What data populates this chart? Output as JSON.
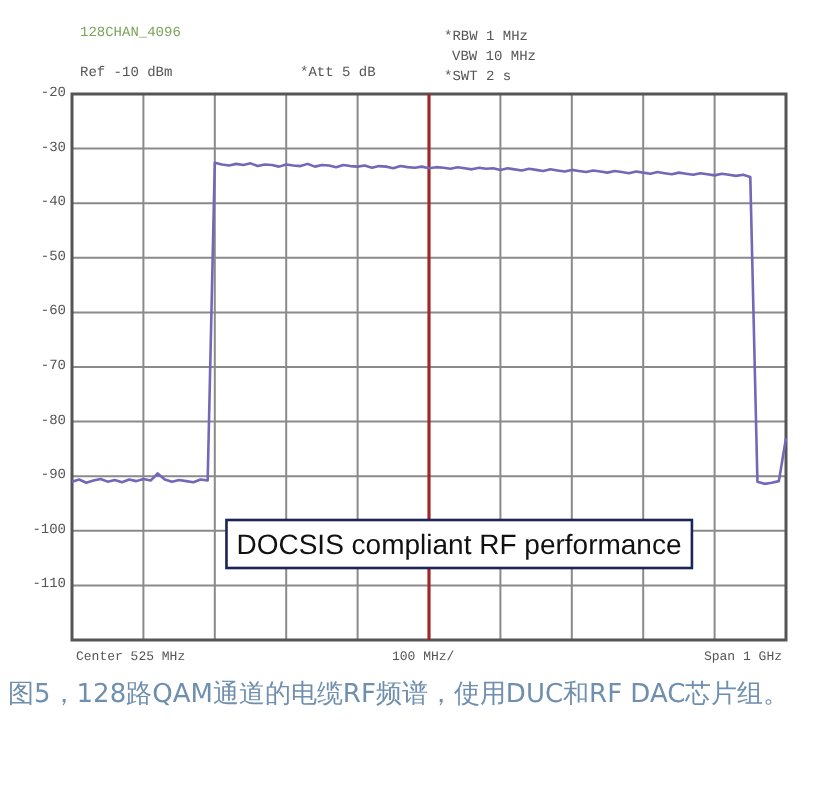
{
  "chart_data": {
    "type": "line",
    "title": "128CHAN_4096",
    "ylim": [
      -120,
      -20
    ],
    "yticks": [
      -20,
      -30,
      -40,
      -50,
      -60,
      -70,
      -80,
      -90,
      -100,
      -110,
      {
        "value": -120,
        "label": null
      }
    ],
    "grid": true,
    "marker": "none",
    "line_style": "solid",
    "categories": [
      null,
      null,
      null,
      null,
      null,
      null,
      null,
      null,
      null,
      null,
      null,
      null,
      null,
      null,
      null,
      null,
      null,
      null,
      null,
      null,
      null,
      null,
      null,
      null,
      null,
      null,
      null,
      null,
      null,
      null,
      null,
      null,
      null,
      null,
      null,
      null,
      null,
      null,
      null,
      null,
      null,
      null,
      null,
      null,
      null,
      null,
      null,
      null,
      null,
      null,
      null,
      null,
      null,
      null,
      null,
      null,
      null,
      null,
      null,
      null,
      null,
      null,
      null,
      null,
      null,
      null,
      null,
      null,
      null,
      null,
      null,
      null,
      null,
      null,
      null,
      null,
      null,
      null,
      null,
      null,
      null,
      null,
      null,
      null,
      null,
      null,
      null,
      null,
      null,
      null,
      null,
      null,
      null,
      null,
      null,
      null,
      null,
      null,
      null,
      null,
      null
    ],
    "series": [
      {
        "color": "#7467b8",
        "values": [
          -91,
          -90.6,
          -91.2,
          -90.8,
          -90.5,
          -91,
          -90.7,
          -91.1,
          -90.6,
          -90.9,
          -90.5,
          -90.8,
          -89.5,
          -90.6,
          -91,
          -90.7,
          -90.9,
          -91.1,
          -90.6,
          -90.8,
          -32.6,
          -32.9,
          -33.1,
          -32.8,
          -33,
          -32.7,
          -33.2,
          -32.9,
          -33,
          -33.3,
          -32.9,
          -33.1,
          -33.2,
          -32.8,
          -33.3,
          -33,
          -33.1,
          -33.4,
          -33,
          -33.2,
          -33.3,
          -33.1,
          -33.5,
          -33.2,
          -33.3,
          -33.6,
          -33.2,
          -33.4,
          -33.5,
          -33.3,
          -33.6,
          -33.4,
          -33.5,
          -33.7,
          -33.4,
          -33.6,
          -33.8,
          -33.5,
          -33.7,
          -33.6,
          -33.9,
          -33.6,
          -33.8,
          -34,
          -33.7,
          -33.9,
          -34.1,
          -33.8,
          -34,
          -34.2,
          -33.9,
          -34.1,
          -34.3,
          -34,
          -34.2,
          -34.4,
          -34.1,
          -34.3,
          -34.5,
          -34.2,
          -34.4,
          -34.6,
          -34.3,
          -34.5,
          -34.7,
          -34.4,
          -34.6,
          -34.8,
          -34.5,
          -34.7,
          -34.9,
          -34.6,
          -34.8,
          -35,
          -34.8,
          -35.2,
          -91,
          -91.4,
          -91.2,
          -90.9,
          -83
        ]
      }
    ],
    "annotations": [
      "Ref -10 dBm",
      "*Att 5 dB",
      "*RBW 1 MHz",
      "VBW 10 MHz",
      "*SWT 2 s",
      "Center 525 MHz",
      "100 MHz/",
      "Span 1 GHz",
      "DOCSIS compliant RF performance",
      "图5，128路QAM通道的电缆RF频谱，使用DUC和RF DAC芯片组。"
    ]
  }
}
